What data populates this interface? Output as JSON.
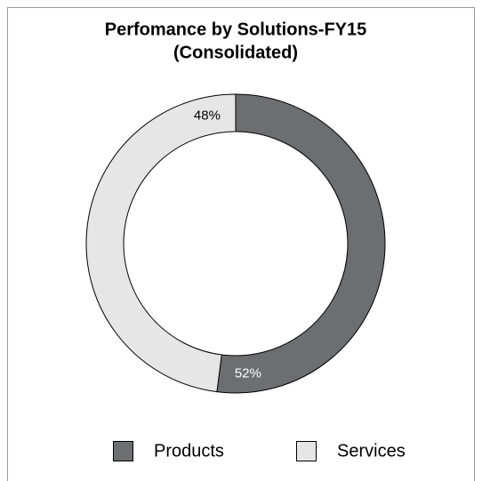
{
  "chart_data": {
    "type": "donut",
    "title": [
      "Perfomance by Solutions-FY15",
      "(Consolidated)"
    ],
    "categories": [
      "Products",
      "Services"
    ],
    "values": [
      52,
      48
    ],
    "value_labels": [
      "52%",
      "48%"
    ],
    "colors": [
      "#6d6e71",
      "#e6e6e7"
    ],
    "legend": "bottom"
  }
}
